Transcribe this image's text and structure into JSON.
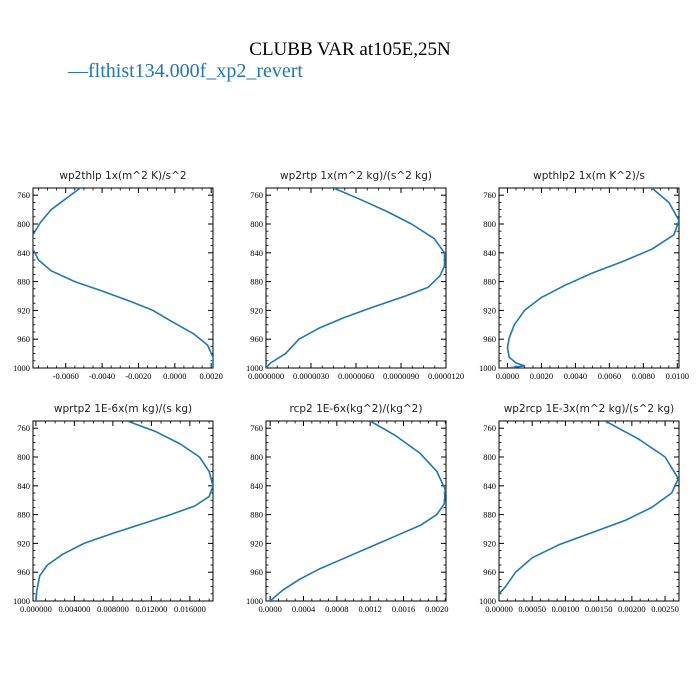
{
  "figure": {
    "title": "CLUBB VAR at105E,25N",
    "legend": [
      {
        "label": "flthist134.000f_xp2_revert",
        "color": "#1f77b4",
        "marker": "—"
      }
    ]
  },
  "chart_data": [
    {
      "type": "line",
      "title": "wp2thlp  1x(m^2 K)/s^2",
      "xlim": [
        -0.0078,
        0.0021
      ],
      "ylim": [
        1000,
        750
      ],
      "xticks": [
        -0.006,
        -0.004,
        -0.002,
        0.0,
        0.002
      ],
      "xtick_labels": [
        "-0.0060",
        "-0.0040",
        "-0.0020",
        "0.0000",
        "0.0020"
      ],
      "yticks": [
        760,
        800,
        840,
        880,
        920,
        960,
        1000
      ],
      "series": [
        {
          "name": "flthist134.000f_xp2_revert",
          "color": "#1f77b4",
          "x": [
            -0.0052,
            -0.006,
            -0.0068,
            -0.0074,
            -0.0078,
            -0.0078,
            -0.0075,
            -0.0068,
            -0.0055,
            -0.004,
            -0.0025,
            -0.0012,
            -0.0002,
            0.001,
            0.0018,
            0.0021,
            0.0021
          ],
          "y": [
            750,
            765,
            780,
            798,
            815,
            835,
            850,
            865,
            880,
            893,
            907,
            920,
            935,
            952,
            968,
            985,
            1000
          ]
        }
      ]
    },
    {
      "type": "line",
      "title": "wp2rtp  1x(m^2 kg)/(s^2 kg)",
      "xlim": [
        0.0,
        1.2e-05
      ],
      "ylim": [
        1000,
        750
      ],
      "xticks": [
        0.0,
        3e-06,
        6e-06,
        9e-06,
        1.2e-05
      ],
      "xtick_labels": [
        "0.0000000",
        "0.0000030",
        "0.0000060",
        "0.0000090",
        "0.0000120"
      ],
      "yticks": [
        760,
        800,
        840,
        880,
        920,
        960,
        1000
      ],
      "series": [
        {
          "name": "flthist134.000f_xp2_revert",
          "color": "#1f77b4",
          "x": [
            4.5e-06,
            6.2e-06,
            8e-06,
            9.7e-06,
            1.12e-05,
            1.19e-05,
            1.19e-05,
            1.16e-05,
            1.08e-05,
            9.3e-06,
            7.2e-06,
            5.2e-06,
            3.5e-06,
            2.2e-06,
            1.3e-06,
            3e-07,
            0.0
          ],
          "y": [
            750,
            765,
            782,
            800,
            820,
            840,
            858,
            872,
            888,
            900,
            915,
            930,
            945,
            960,
            980,
            993,
            1000
          ]
        }
      ]
    },
    {
      "type": "line",
      "title": "wpthlp2  1x(m K^2)/s",
      "xlim": [
        -0.0005,
        0.0101
      ],
      "ylim": [
        1000,
        750
      ],
      "xticks": [
        0.0,
        0.002,
        0.004,
        0.006,
        0.008,
        0.01
      ],
      "xtick_labels": [
        "0.0000",
        "0.0020",
        "0.0040",
        "0.0060",
        "0.0080",
        "0.0100"
      ],
      "yticks": [
        760,
        800,
        840,
        880,
        920,
        960,
        1000
      ],
      "series": [
        {
          "name": "flthist134.000f_xp2_revert",
          "color": "#1f77b4",
          "x": [
            0.0085,
            0.0095,
            0.0101,
            0.0098,
            0.0085,
            0.0068,
            0.005,
            0.0034,
            0.002,
            0.001,
            0.0004,
            0.0001,
            0.0,
            0.0001,
            0.0005,
            0.001,
            0.0
          ],
          "y": [
            750,
            770,
            795,
            815,
            835,
            852,
            868,
            885,
            902,
            920,
            940,
            958,
            972,
            985,
            993,
            997,
            1000
          ]
        }
      ]
    },
    {
      "type": "line",
      "title": "wprtp2  1E-6x(m kg)/(s kg)",
      "xlim": [
        -0.0003,
        0.0184
      ],
      "ylim": [
        1000,
        750
      ],
      "xticks": [
        0.0,
        0.004,
        0.008,
        0.012,
        0.016
      ],
      "xtick_labels": [
        "0.000000",
        "0.004000",
        "0.008000",
        "0.012000",
        "0.016000"
      ],
      "yticks": [
        760,
        800,
        840,
        880,
        920,
        960,
        1000
      ],
      "series": [
        {
          "name": "flthist134.000f_xp2_revert",
          "color": "#1f77b4",
          "x": [
            0.0095,
            0.0125,
            0.015,
            0.017,
            0.018,
            0.0184,
            0.018,
            0.0165,
            0.014,
            0.011,
            0.008,
            0.005,
            0.0028,
            0.0012,
            0.0004,
            0.0001,
            0.0
          ],
          "y": [
            750,
            765,
            782,
            800,
            820,
            840,
            855,
            868,
            880,
            893,
            906,
            920,
            935,
            950,
            965,
            985,
            1000
          ]
        }
      ]
    },
    {
      "type": "line",
      "title": "rcp2  1E-6x(kg^2)/(kg^2)",
      "xlim": [
        -5e-05,
        0.00211
      ],
      "ylim": [
        1000,
        750
      ],
      "xticks": [
        0.0,
        0.0004,
        0.0008,
        0.0012,
        0.0016,
        0.002
      ],
      "xtick_labels": [
        "0.0000",
        "0.0004",
        "0.0008",
        "0.0012",
        "0.0016",
        "0.0020"
      ],
      "yticks": [
        760,
        800,
        840,
        880,
        920,
        960,
        1000
      ],
      "series": [
        {
          "name": "flthist134.000f_xp2_revert",
          "color": "#1f77b4",
          "x": [
            0.0012,
            0.0015,
            0.0018,
            0.002,
            0.0021,
            0.00209,
            0.002,
            0.0018,
            0.0015,
            0.0012,
            0.0009,
            0.0006,
            0.00035,
            0.00015,
            5e-05,
            0.0
          ],
          "y": [
            750,
            770,
            795,
            820,
            845,
            865,
            880,
            895,
            910,
            925,
            940,
            955,
            970,
            985,
            995,
            1000
          ]
        }
      ]
    },
    {
      "type": "line",
      "title": "wp2rcp  1E-3x(m^2 kg)/(s^2 kg)",
      "xlim": [
        0.0,
        0.00271
      ],
      "ylim": [
        1000,
        750
      ],
      "xticks": [
        0.0,
        0.0005,
        0.001,
        0.0015,
        0.002,
        0.0025
      ],
      "xtick_labels": [
        "0.00000",
        "0.00050",
        "0.00100",
        "0.00150",
        "0.00200",
        "0.00250"
      ],
      "yticks": [
        760,
        800,
        840,
        880,
        920,
        960,
        1000
      ],
      "series": [
        {
          "name": "flthist134.000f_xp2_revert",
          "color": "#1f77b4",
          "x": [
            0.0016,
            0.0021,
            0.0025,
            0.0027,
            0.0026,
            0.0023,
            0.0019,
            0.0014,
            0.0009,
            0.0005,
            0.00025,
            0.0001,
            0.0
          ],
          "y": [
            750,
            775,
            800,
            830,
            850,
            870,
            888,
            905,
            922,
            940,
            960,
            980,
            990
          ]
        }
      ]
    }
  ]
}
